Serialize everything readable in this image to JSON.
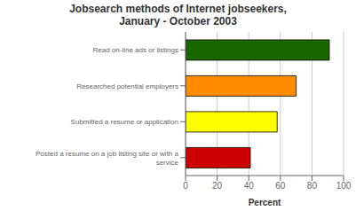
{
  "chart_data": {
    "type": "bar",
    "title": "Jobsearch methods of Internet jobseekers,\nJanuary - October 2003",
    "categories": [
      "Posted a resume on a job listing site or with a\nservice",
      "Submitted a resume or application",
      "Researched potential employers",
      "Read on-line ads or listings"
    ],
    "values": [
      41,
      58,
      70,
      91
    ],
    "colors": [
      "#cc0000",
      "#ffff00",
      "#ff8c00",
      "#1a6600"
    ],
    "xlabel": "Percent",
    "xlim": [
      0,
      100
    ],
    "xticks": [
      0,
      20,
      40,
      60,
      80,
      100
    ],
    "orientation": "horizontal",
    "grid": true
  }
}
